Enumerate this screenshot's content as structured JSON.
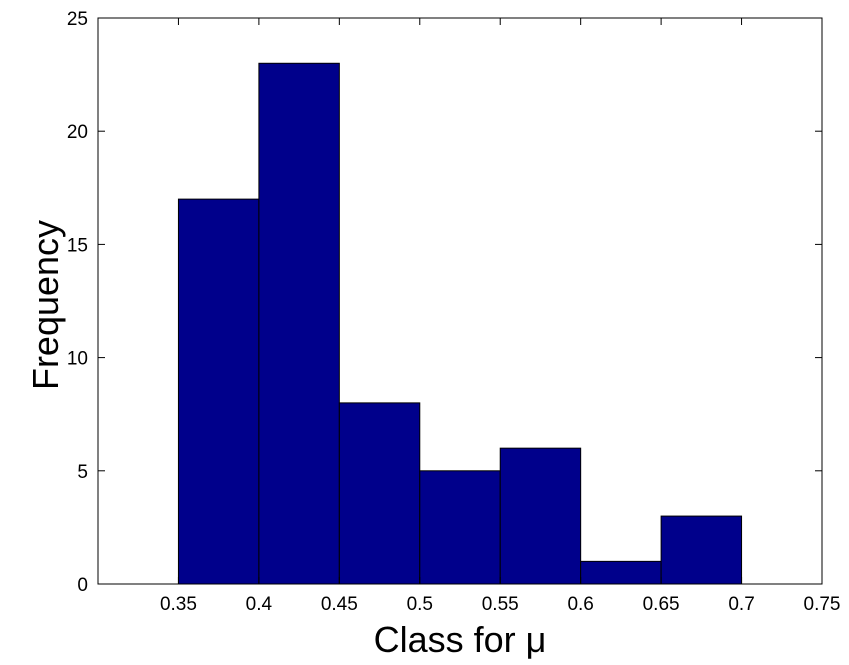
{
  "chart_data": {
    "type": "bar",
    "title": "",
    "xlabel": "Class for μ",
    "ylabel": "Frequency",
    "bin_edges": [
      0.35,
      0.4,
      0.45,
      0.5,
      0.55,
      0.6,
      0.65,
      0.7
    ],
    "values": [
      17,
      23,
      8,
      5,
      6,
      1,
      3
    ],
    "xlim": [
      0.3,
      0.75
    ],
    "ylim": [
      0,
      25
    ],
    "xticks": [
      "0.35",
      "0.4",
      "0.45",
      "0.5",
      "0.55",
      "0.6",
      "0.65",
      "0.7",
      "0.75"
    ],
    "yticks": [
      "0",
      "5",
      "10",
      "15",
      "20",
      "25"
    ],
    "grid": false,
    "bar_color": "#00008B",
    "edge_color": "#000000"
  }
}
